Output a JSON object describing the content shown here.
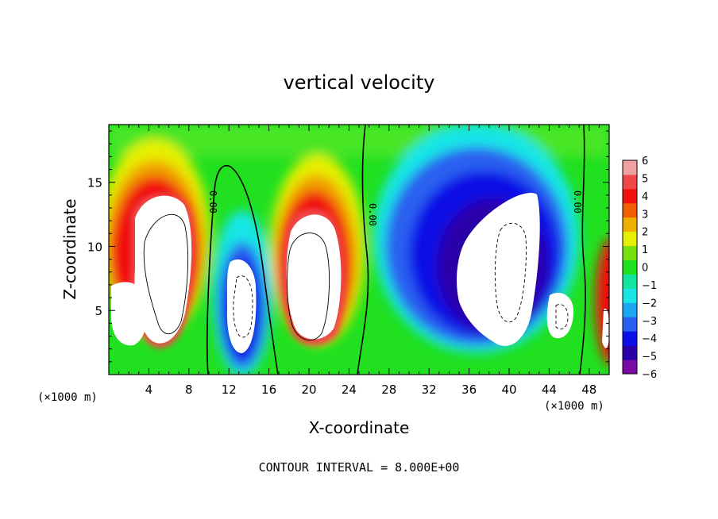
{
  "chart_data": {
    "type": "heatmap",
    "title": "vertical velocity",
    "xlabel": "X-coordinate",
    "ylabel": "Z-coordinate",
    "x_unit": "(×1000 m)",
    "z_unit": "(×1000 m)",
    "footer": "CONTOUR INTERVAL = 8.000E+00",
    "xlim": [
      0,
      50
    ],
    "ylim": [
      0,
      19.5
    ],
    "xticks": [
      4,
      8,
      12,
      16,
      20,
      24,
      28,
      32,
      36,
      40,
      44,
      48
    ],
    "yticks": [
      5,
      10,
      15
    ],
    "colorbar": {
      "ticks": [
        6,
        5,
        4,
        3,
        2,
        1,
        0,
        -1,
        -2,
        -3,
        -4,
        -5,
        -6
      ],
      "range": [
        -6,
        6
      ],
      "colors": [
        "#7a0aa8",
        "#2a00a8",
        "#0a10e6",
        "#2a60f0",
        "#1aa6f0",
        "#18e6e6",
        "#10e6a0",
        "#20e020",
        "#78e010",
        "#e6f000",
        "#f0b000",
        "#f06000",
        "#f01010",
        "#f04848",
        "#f0a0a0"
      ]
    },
    "contour_labels": [
      "0.00",
      "0.00",
      "0.00"
    ]
  }
}
